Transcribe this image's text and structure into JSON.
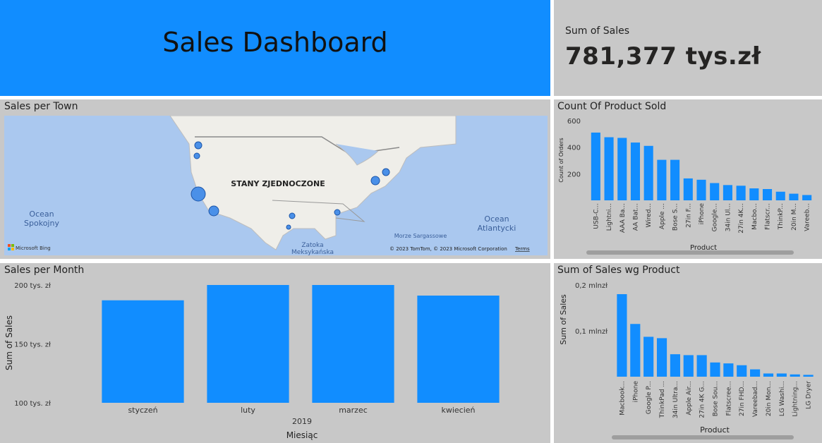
{
  "dashboard_title": "Sales Dashboard",
  "kpi": {
    "label": "Sum of Sales",
    "value": "781,377 tys.zł"
  },
  "map": {
    "title": "Sales per Town",
    "country_label": "STANY ZJEDNOCZONE",
    "ocean_pacific_1": "Ocean",
    "ocean_pacific_2": "Spokojny",
    "ocean_atlantic_1": "Ocean",
    "ocean_atlantic_2": "Atlantycki",
    "sargasso": "Morze Sargassowe",
    "gulf_1": "Zatoka",
    "gulf_2": "Meksykańska",
    "bing": "Microsoft Bing",
    "copyright": "© 2023 TomTom, © 2023 Microsoft Corporation",
    "terms": "Terms"
  },
  "colors": {
    "accent": "#118dff",
    "panel": "#c8c8c8",
    "water": "#aac8ef",
    "land": "#efeee9"
  },
  "chart_data": [
    {
      "id": "count_product",
      "type": "bar",
      "title": "Count Of Product Sold",
      "xlabel": "Product",
      "ylabel": "Count of Orders",
      "ylim": [
        0,
        600
      ],
      "yticks": [
        200,
        400,
        600
      ],
      "categories": [
        "USB-C...",
        "Lightni...",
        "AAA Ba...",
        "AA Bat...",
        "Wired...",
        "Apple ...",
        "Bose S...",
        "27in F...",
        "iPhone",
        "Google...",
        "34in Ul...",
        "27in 4K...",
        "Macbo...",
        "Flatscr...",
        "ThinkP...",
        "20in M...",
        "Vareeb..."
      ],
      "values": [
        510,
        475,
        470,
        435,
        410,
        305,
        305,
        165,
        155,
        130,
        115,
        110,
        90,
        85,
        65,
        50,
        40
      ]
    },
    {
      "id": "sales_month",
      "type": "bar",
      "title": "Sales per Month",
      "xlabel": "Miesiąc",
      "x_group_label": "2019",
      "ylabel": "Sum of Sales",
      "ylim": [
        100,
        200
      ],
      "yticks": [
        100,
        150,
        200
      ],
      "ytick_labels": [
        "100 tys. zł",
        "150 tys. zł",
        "200 tys. zł"
      ],
      "categories": [
        "styczeń",
        "luty",
        "marzec",
        "kwiecień"
      ],
      "values": [
        187,
        200,
        200,
        191
      ]
    },
    {
      "id": "sales_product",
      "type": "bar",
      "title": "Sum of Sales wg Product",
      "xlabel": "Product",
      "ylabel": "Sum of Sales",
      "ylim": [
        0,
        0.2
      ],
      "yticks": [
        0.1,
        0.2
      ],
      "ytick_labels": [
        "0,1 mlnzł",
        "0,2 mlnzł"
      ],
      "categories": [
        "Macbook...",
        "iPhone",
        "Google P...",
        "ThinkPad ...",
        "34in Ultra...",
        "Apple Air...",
        "27in 4K G...",
        "Bose Sou...",
        "Flatscree...",
        "27in FHD...",
        "Vareebad...",
        "20in Mon...",
        "LG Washi...",
        "Lightning...",
        "LG Dryer"
      ],
      "values": [
        0.18,
        0.115,
        0.087,
        0.084,
        0.049,
        0.047,
        0.047,
        0.031,
        0.029,
        0.025,
        0.016,
        0.007,
        0.007,
        0.005,
        0.004
      ]
    }
  ]
}
